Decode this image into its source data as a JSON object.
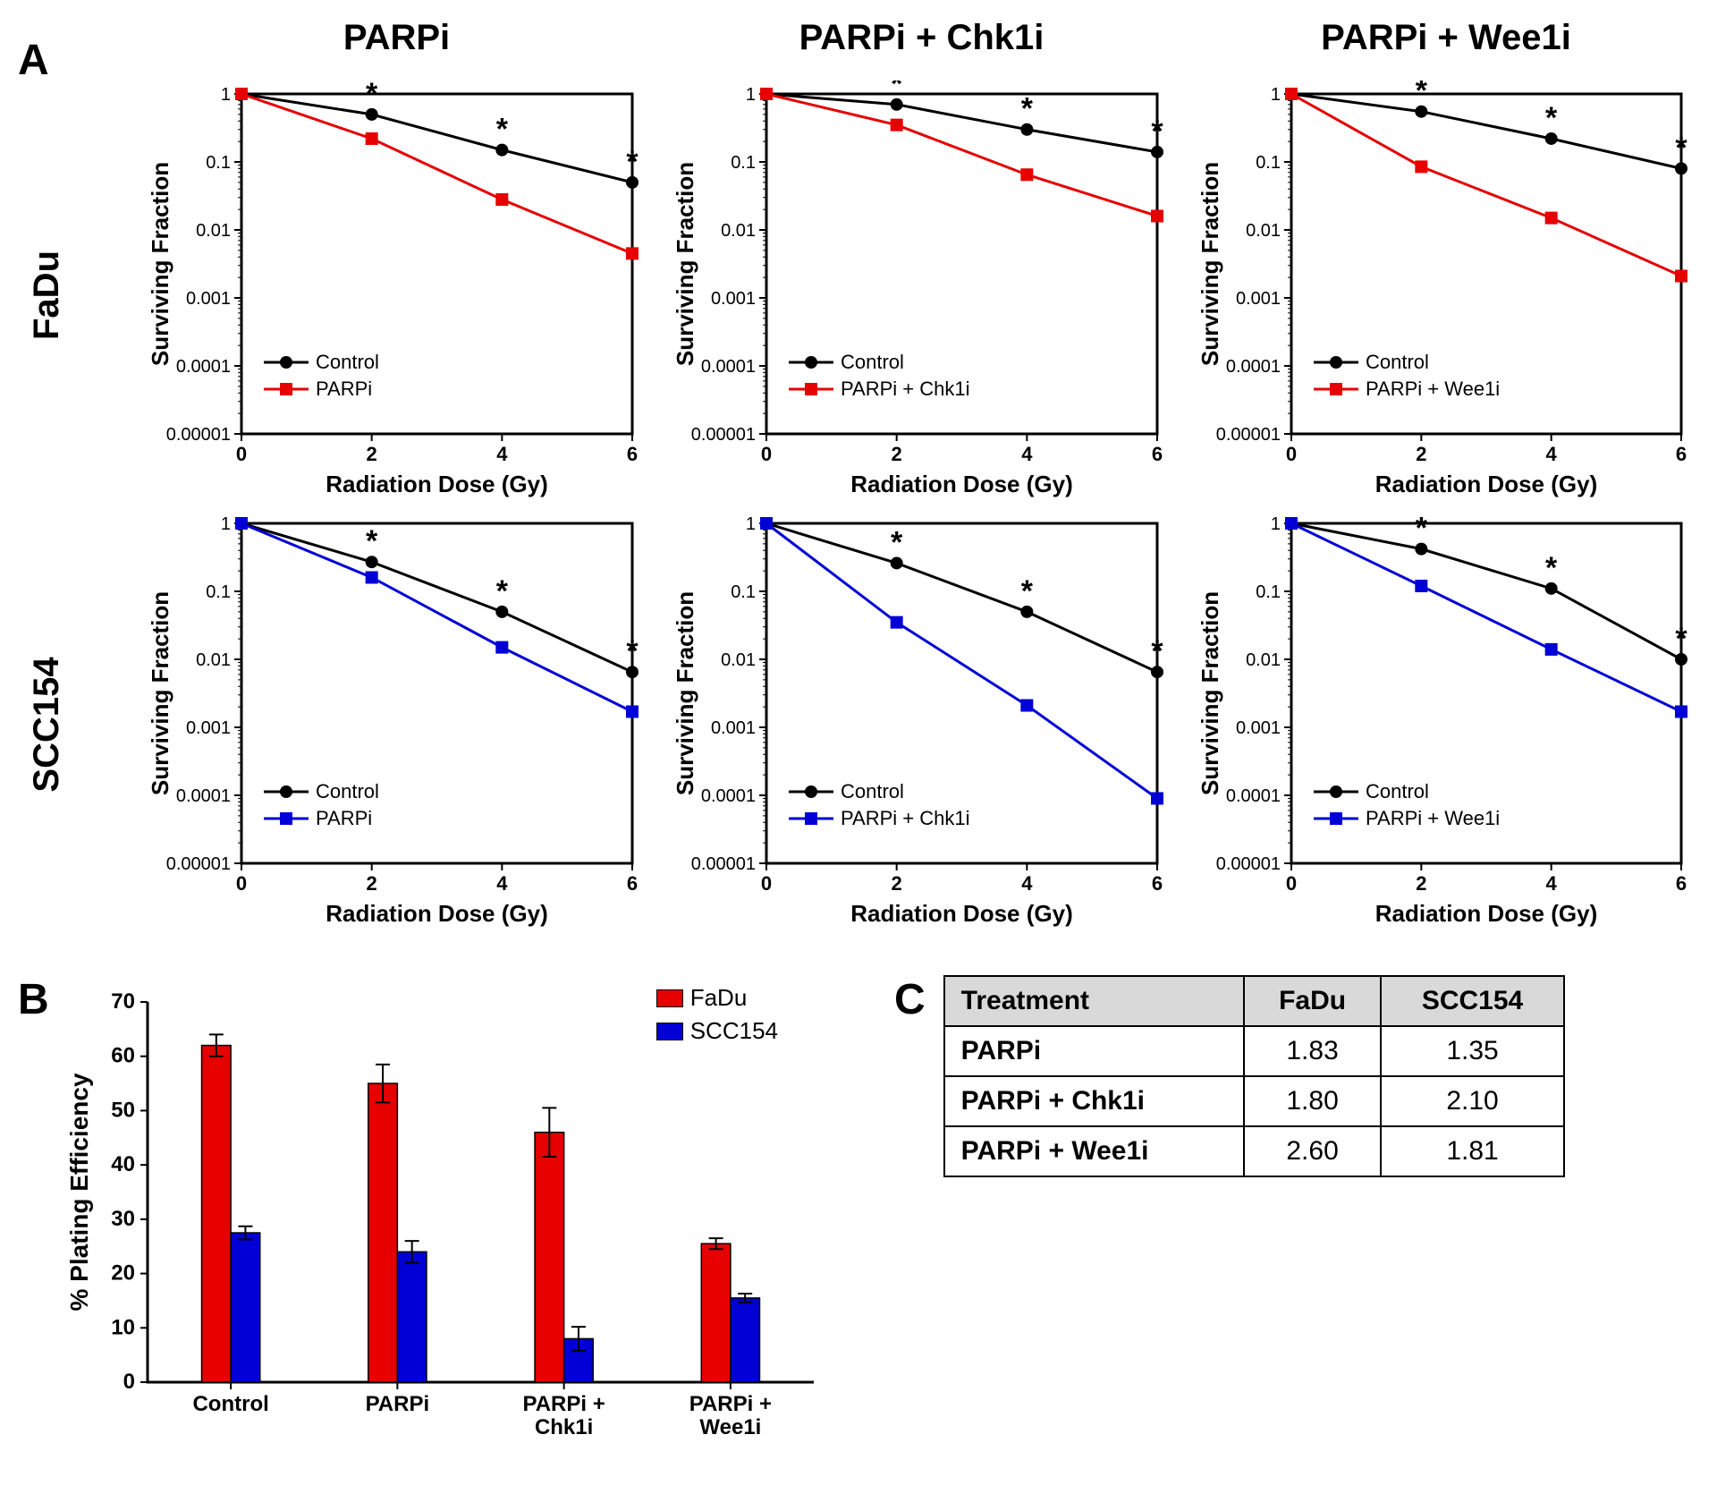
{
  "colors": {
    "control": "#000000",
    "fadu": "#e60000",
    "scc154": "#0000d6",
    "axis": "#000000",
    "table_header_bg": "#d9d9d9",
    "background": "#ffffff"
  },
  "typography": {
    "panel_label_pt": 48,
    "col_title_pt": 40,
    "row_label_pt": 40,
    "axis_label_pt": 28,
    "tick_label_pt": 22,
    "legend_pt": 24,
    "table_pt": 30
  },
  "panelA": {
    "column_titles": [
      "PARPi",
      "PARPi + Chk1i",
      "PARPi + Wee1i"
    ],
    "row_labels": [
      "FaDu",
      "SCC154"
    ],
    "x_axis": {
      "label": "Radiation Dose (Gy)",
      "ticks": [
        0,
        2,
        4,
        6
      ],
      "lim": [
        0,
        6
      ]
    },
    "y_axis": {
      "label": "Surviving Fraction",
      "scale": "log",
      "ticks": [
        1,
        0.1,
        0.01,
        0.001,
        0.0001,
        1e-05
      ],
      "lim": [
        1e-05,
        1
      ]
    },
    "marker": {
      "control_shape": "circle",
      "treat_shape": "square",
      "size": 8,
      "line_width": 2.5
    },
    "charts": [
      {
        "row": "FaDu",
        "col": "PARPi",
        "treat_label": "PARPi",
        "treat_color": "#e60000",
        "control": {
          "x": [
            0,
            2,
            4,
            6
          ],
          "y": [
            1,
            0.5,
            0.15,
            0.05
          ]
        },
        "treated": {
          "x": [
            0,
            2,
            4,
            6
          ],
          "y": [
            1,
            0.22,
            0.028,
            0.0045
          ]
        },
        "sig_x": [
          2,
          4,
          6
        ]
      },
      {
        "row": "FaDu",
        "col": "PARPi + Chk1i",
        "treat_label": "PARPi + Chk1i",
        "treat_color": "#e60000",
        "control": {
          "x": [
            0,
            2,
            4,
            6
          ],
          "y": [
            1,
            0.7,
            0.3,
            0.14
          ]
        },
        "treated": {
          "x": [
            0,
            2,
            4,
            6
          ],
          "y": [
            1,
            0.35,
            0.065,
            0.016
          ]
        },
        "sig_x": [
          2,
          4,
          6
        ]
      },
      {
        "row": "FaDu",
        "col": "PARPi + Wee1i",
        "treat_label": "PARPi + Wee1i",
        "treat_color": "#e60000",
        "control": {
          "x": [
            0,
            2,
            4,
            6
          ],
          "y": [
            1,
            0.55,
            0.22,
            0.08
          ]
        },
        "treated": {
          "x": [
            0,
            2,
            4,
            6
          ],
          "y": [
            1,
            0.085,
            0.015,
            0.0021
          ]
        },
        "sig_x": [
          2,
          4,
          6
        ]
      },
      {
        "row": "SCC154",
        "col": "PARPi",
        "treat_label": "PARPi",
        "treat_color": "#0000d6",
        "control": {
          "x": [
            0,
            2,
            4,
            6
          ],
          "y": [
            1,
            0.27,
            0.05,
            0.0065
          ]
        },
        "treated": {
          "x": [
            0,
            2,
            4,
            6
          ],
          "y": [
            1,
            0.16,
            0.015,
            0.0017
          ]
        },
        "sig_x": [
          2,
          4,
          6
        ]
      },
      {
        "row": "SCC154",
        "col": "PARPi + Chk1i",
        "treat_label": "PARPi + Chk1i",
        "treat_color": "#0000d6",
        "control": {
          "x": [
            0,
            2,
            4,
            6
          ],
          "y": [
            1,
            0.26,
            0.05,
            0.0065
          ]
        },
        "treated": {
          "x": [
            0,
            2,
            4,
            6
          ],
          "y": [
            1,
            0.035,
            0.0021,
            9e-05
          ]
        },
        "sig_x": [
          2,
          4,
          6
        ]
      },
      {
        "row": "SCC154",
        "col": "PARPi + Wee1i",
        "treat_label": "PARPi + Wee1i",
        "treat_color": "#0000d6",
        "control": {
          "x": [
            0,
            2,
            4,
            6
          ],
          "y": [
            1,
            0.42,
            0.11,
            0.01
          ]
        },
        "treated": {
          "x": [
            0,
            2,
            4,
            6
          ],
          "y": [
            1,
            0.12,
            0.014,
            0.0017
          ]
        },
        "sig_x": [
          2,
          4,
          6
        ]
      }
    ]
  },
  "panelB": {
    "type": "bar",
    "y_axis": {
      "label": "% Plating Efficiency",
      "lim": [
        0,
        70
      ],
      "ticks": [
        0,
        10,
        20,
        30,
        40,
        50,
        60,
        70
      ]
    },
    "categories": [
      "Control",
      "PARPi",
      "PARPi +\nChk1i",
      "PARPi +\nWee1i"
    ],
    "series": [
      {
        "name": "FaDu",
        "color": "#e60000",
        "values": [
          62,
          55,
          46,
          25.5
        ],
        "err": [
          2,
          3.5,
          4.5,
          1
        ]
      },
      {
        "name": "SCC154",
        "color": "#0000d6",
        "values": [
          27.5,
          24,
          8,
          15.5
        ],
        "err": [
          1.2,
          2,
          2.2,
          0.8
        ]
      }
    ],
    "bar_width": 0.35,
    "error_cap_width": 8
  },
  "panelC": {
    "header": [
      "Treatment",
      "FaDu",
      "SCC154"
    ],
    "rows": [
      [
        "PARPi",
        "1.83",
        "1.35"
      ],
      [
        "PARPi + Chk1i",
        "1.80",
        "2.10"
      ],
      [
        "PARPi + Wee1i",
        "2.60",
        "1.81"
      ]
    ]
  },
  "labels": {
    "A": "A",
    "B": "B",
    "C": "C",
    "control": "Control"
  }
}
